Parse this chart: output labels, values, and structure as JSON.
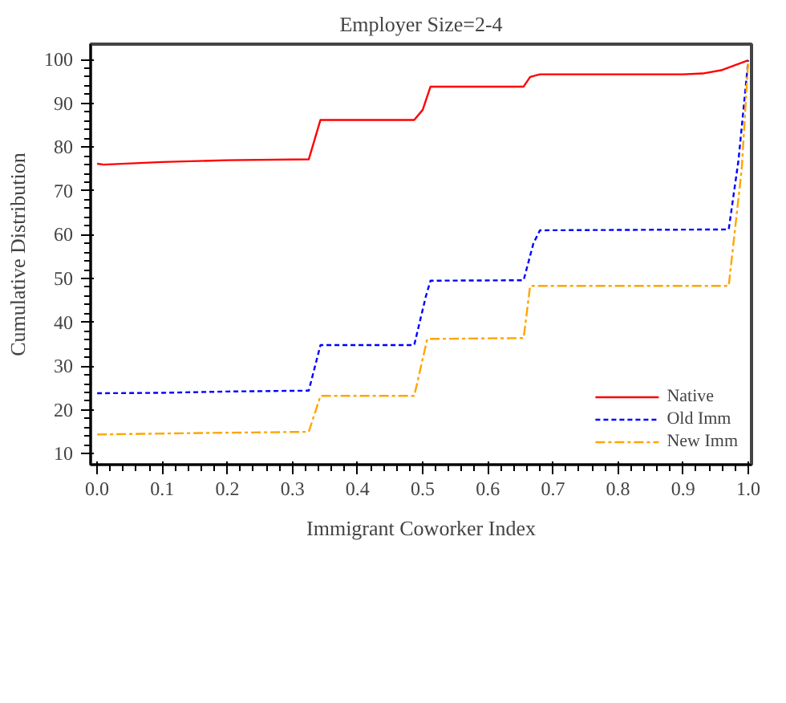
{
  "chart_data": {
    "type": "line",
    "title": "Employer Size=2-4",
    "xlabel": "Immigrant Coworker Index",
    "ylabel": "Cumulative Distribution",
    "xlim": [
      -0.01,
      1.005
    ],
    "ylim": [
      7.5,
      103.5
    ],
    "xticks": [
      {
        "value": 0,
        "label": "0.0"
      },
      0.1,
      0.2,
      0.3,
      0.4,
      0.5,
      0.6,
      0.7,
      0.8,
      0.9,
      {
        "value": 1,
        "label": "1.0"
      }
    ],
    "yticks": [
      10,
      20,
      30,
      40,
      50,
      60,
      70,
      80,
      90,
      100
    ],
    "grid": false,
    "legend": "bottom right",
    "series": [
      {
        "name": "Native",
        "color": "#ff0000",
        "line_style": "solid",
        "x": [
          0,
          0.01,
          0.1,
          0.2,
          0.325,
          0.343,
          0.487,
          0.5,
          0.512,
          0.655,
          0.665,
          0.68,
          0.9,
          0.93,
          0.96,
          1.0
        ],
        "values": [
          76.2,
          76,
          76.6,
          77,
          77.2,
          86.2,
          86.2,
          88.5,
          93.8,
          93.8,
          96,
          96.6,
          96.6,
          96.8,
          97.6,
          99.8
        ]
      },
      {
        "name": "Old Imm",
        "color": "#0000ff",
        "line_style": "dashed",
        "x": [
          0,
          0.1,
          0.2,
          0.325,
          0.343,
          0.487,
          0.505,
          0.512,
          0.655,
          0.67,
          0.68,
          0.97,
          0.985,
          1.0
        ],
        "values": [
          23.8,
          23.9,
          24.2,
          24.4,
          34.8,
          34.8,
          46,
          49.5,
          49.6,
          58,
          61,
          61.2,
          77,
          99.8
        ]
      },
      {
        "name": "New Imm",
        "color": "#ffa500",
        "line_style": "dashdot",
        "x": [
          0,
          0.1,
          0.2,
          0.325,
          0.343,
          0.487,
          0.507,
          0.655,
          0.665,
          0.97,
          0.99,
          1.0
        ],
        "values": [
          14.4,
          14.6,
          14.8,
          15,
          23.2,
          23.2,
          36.2,
          36.4,
          48.3,
          48.3,
          75,
          99.8
        ]
      }
    ]
  }
}
